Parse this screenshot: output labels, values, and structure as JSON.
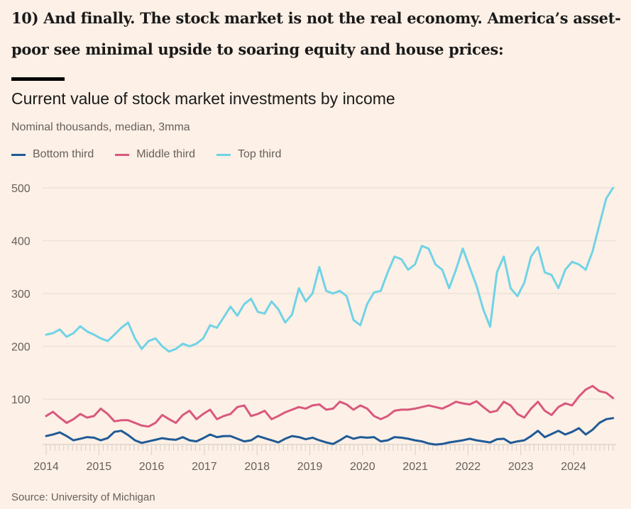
{
  "headline": "10) And finally. The stock market is not the real economy. America’s asset-poor see minimal upside to soaring equity and house prices:",
  "source": "Source: University of Michigan",
  "chart_data": {
    "type": "line",
    "title": "Current value of stock market investments by income",
    "subtitle": "Nominal thousands, median, 3mma",
    "xlabel": "",
    "ylabel": "",
    "ylim": [
      0,
      500
    ],
    "xlim": [
      2014.0,
      2024.75
    ],
    "yticks": [
      100,
      200,
      300,
      400,
      500
    ],
    "xticks": [
      "2014",
      "2015",
      "2016",
      "2017",
      "2018",
      "2019",
      "2020",
      "2021",
      "2022",
      "2023",
      "2024"
    ],
    "grid": true,
    "legend_position": "top-left",
    "x_start": 2014.0,
    "x_step_months": 2,
    "series": [
      {
        "name": "Bottom third",
        "color": "#1f5a96",
        "values": [
          30,
          33,
          37,
          30,
          22,
          25,
          28,
          27,
          22,
          26,
          38,
          40,
          32,
          22,
          17,
          20,
          23,
          26,
          24,
          23,
          28,
          22,
          20,
          26,
          33,
          28,
          30,
          30,
          25,
          20,
          22,
          30,
          26,
          22,
          18,
          25,
          30,
          28,
          24,
          27,
          22,
          18,
          15,
          22,
          30,
          25,
          28,
          27,
          28,
          20,
          22,
          28,
          27,
          25,
          22,
          20,
          16,
          14,
          15,
          18,
          20,
          22,
          25,
          22,
          20,
          18,
          24,
          25,
          17,
          20,
          22,
          30,
          40,
          28,
          34,
          40,
          33,
          38,
          45,
          33,
          42,
          55,
          62,
          64
        ]
      },
      {
        "name": "Middle third",
        "color": "#d9587e",
        "values": [
          68,
          76,
          65,
          55,
          62,
          72,
          65,
          68,
          82,
          72,
          58,
          60,
          60,
          55,
          50,
          48,
          55,
          70,
          62,
          55,
          70,
          78,
          62,
          72,
          80,
          62,
          68,
          72,
          85,
          88,
          68,
          72,
          78,
          62,
          68,
          75,
          80,
          85,
          82,
          88,
          90,
          80,
          82,
          95,
          90,
          80,
          88,
          82,
          68,
          62,
          68,
          78,
          80,
          80,
          82,
          85,
          88,
          85,
          82,
          88,
          95,
          92,
          90,
          96,
          85,
          75,
          78,
          95,
          88,
          72,
          65,
          82,
          95,
          78,
          70,
          85,
          92,
          88,
          105,
          118,
          125,
          115,
          112,
          102
        ]
      },
      {
        "name": "Top third",
        "color": "#70d3e6",
        "values": [
          222,
          225,
          232,
          218,
          225,
          238,
          228,
          222,
          215,
          210,
          222,
          235,
          245,
          215,
          195,
          210,
          215,
          200,
          190,
          195,
          205,
          200,
          205,
          215,
          240,
          235,
          255,
          275,
          258,
          280,
          290,
          265,
          262,
          285,
          270,
          245,
          260,
          310,
          285,
          300,
          350,
          305,
          300,
          305,
          295,
          250,
          240,
          280,
          302,
          305,
          340,
          370,
          365,
          345,
          355,
          390,
          385,
          355,
          345,
          310,
          345,
          385,
          350,
          315,
          270,
          237,
          340,
          370,
          310,
          295,
          320,
          370,
          388,
          340,
          335,
          310,
          345,
          360,
          355,
          345,
          380,
          430,
          480,
          500
        ]
      }
    ]
  }
}
